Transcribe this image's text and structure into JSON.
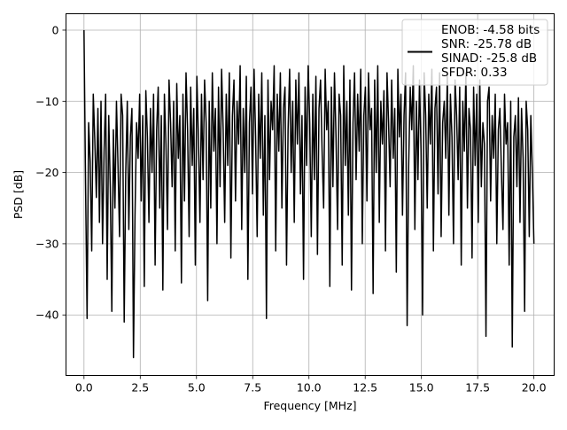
{
  "chart_data": {
    "type": "line",
    "title": "",
    "xlabel": "Frequency [MHz]",
    "ylabel": "PSD [dB]",
    "xlim": [
      -0.8,
      20.9
    ],
    "ylim": [
      -48.5,
      2.3
    ],
    "x_ticks": [
      0.0,
      2.5,
      5.0,
      7.5,
      10.0,
      12.5,
      15.0,
      17.5,
      20.0
    ],
    "x_tick_labels": [
      "0.0",
      "2.5",
      "5.0",
      "7.5",
      "10.0",
      "12.5",
      "15.0",
      "17.5",
      "20.0"
    ],
    "y_ticks": [
      0,
      -10,
      -20,
      -30,
      -40
    ],
    "y_tick_labels": [
      "0",
      "−10",
      "−20",
      "−30",
      "−40"
    ],
    "grid": true,
    "legend_position": "top-right",
    "legend_lines": [
      "ENOB: -4.58 bits",
      "SNR: -25.78 dB",
      "SINAD: -25.8 dB",
      "SFDR: 0.33"
    ],
    "series": [
      {
        "color": "#000000",
        "x_range": [
          0.0,
          20.0
        ],
        "values": [
          0.0,
          -21.5,
          -40.5,
          -13.0,
          -18.5,
          -31.0,
          -9.0,
          -15.5,
          -23.5,
          -11.0,
          -27.0,
          -10.0,
          -30.0,
          -17.0,
          -9.0,
          -35.0,
          -12.0,
          -22.0,
          -39.5,
          -14.0,
          -25.0,
          -10.0,
          -19.0,
          -29.0,
          -9.0,
          -12.0,
          -41.0,
          -20.0,
          -10.0,
          -28.0,
          -15.0,
          -11.0,
          -46.0,
          -26.0,
          -13.0,
          -18.0,
          -9.0,
          -24.0,
          -12.0,
          -36.0,
          -8.5,
          -15.0,
          -27.0,
          -11.0,
          -20.0,
          -9.0,
          -33.0,
          -14.0,
          -8.0,
          -25.0,
          -12.0,
          -36.5,
          -9.0,
          -16.0,
          -28.0,
          -7.0,
          -13.0,
          -22.0,
          -10.0,
          -31.0,
          -7.5,
          -18.0,
          -12.0,
          -35.5,
          -9.0,
          -24.0,
          -6.0,
          -14.0,
          -29.0,
          -8.0,
          -19.0,
          -11.0,
          -33.0,
          -6.5,
          -15.0,
          -27.0,
          -9.0,
          -21.0,
          -7.0,
          -13.0,
          -38.0,
          -10.0,
          -25.0,
          -6.0,
          -17.0,
          -11.0,
          -30.0,
          -8.0,
          -22.0,
          -5.5,
          -14.0,
          -27.0,
          -9.0,
          -19.0,
          -6.0,
          -32.0,
          -12.0,
          -7.0,
          -24.0,
          -10.0,
          -16.0,
          -5.0,
          -28.0,
          -11.0,
          -20.0,
          -6.5,
          -35.0,
          -13.0,
          -8.0,
          -23.0,
          -5.5,
          -15.0,
          -29.0,
          -9.0,
          -18.0,
          -6.0,
          -26.0,
          -12.0,
          -40.5,
          -7.0,
          -21.0,
          -10.0,
          -14.0,
          -5.0,
          -31.0,
          -9.0,
          -17.0,
          -6.0,
          -25.0,
          -11.0,
          -8.0,
          -33.0,
          -14.0,
          -5.5,
          -20.0,
          -10.0,
          -27.0,
          -7.0,
          -16.0,
          -6.0,
          -23.0,
          -12.0,
          -35.0,
          -8.0,
          -19.0,
          -5.0,
          -13.0,
          -29.0,
          -9.0,
          -21.0,
          -6.5,
          -31.5,
          -11.0,
          -7.0,
          -17.0,
          -25.0,
          -5.5,
          -14.0,
          -10.0,
          -36.0,
          -8.0,
          -22.0,
          -6.0,
          -15.0,
          -28.0,
          -9.0,
          -12.0,
          -33.0,
          -5.0,
          -19.0,
          -10.0,
          -26.0,
          -7.0,
          -36.5,
          -13.0,
          -6.0,
          -21.0,
          -9.0,
          -17.0,
          -5.5,
          -30.0,
          -12.0,
          -8.0,
          -24.0,
          -6.0,
          -14.0,
          -11.0,
          -37.0,
          -7.0,
          -20.0,
          -5.0,
          -27.0,
          -10.0,
          -16.0,
          -8.5,
          -31.0,
          -6.0,
          -13.0,
          -22.0,
          -7.0,
          -18.0,
          -11.0,
          -34.0,
          -5.5,
          -15.0,
          -9.0,
          -26.0,
          -12.0,
          -6.0,
          -41.5,
          -19.0,
          -8.0,
          -14.0,
          -5.0,
          -28.0,
          -10.0,
          -21.0,
          -7.0,
          -17.0,
          -40.0,
          -6.0,
          -12.0,
          -25.0,
          -9.0,
          -16.0,
          -5.5,
          -31.0,
          -11.0,
          -8.0,
          -23.0,
          -6.0,
          -29.0,
          -13.0,
          -10.0,
          -18.0,
          -6.5,
          -26.0,
          -9.0,
          -15.0,
          -30.0,
          -7.0,
          -12.0,
          -21.0,
          -8.0,
          -33.0,
          -10.0,
          -17.0,
          -6.0,
          -25.0,
          -11.0,
          -14.0,
          -32.0,
          -8.0,
          -19.0,
          -9.0,
          -27.0,
          -7.0,
          -22.0,
          -13.0,
          -16.0,
          -43.0,
          -10.0,
          -8.0,
          -24.0,
          -12.0,
          -18.0,
          -9.0,
          -30.0,
          -14.0,
          -11.0,
          -20.0,
          -28.0,
          -9.0,
          -16.0,
          -13.0,
          -33.0,
          -10.0,
          -44.5,
          -15.0,
          -12.0,
          -22.0,
          -9.5,
          -27.0,
          -11.0,
          -18.0,
          -39.5,
          -10.0,
          -14.0,
          -29.0,
          -12.0,
          -20.0,
          -30.0
        ]
      }
    ]
  }
}
